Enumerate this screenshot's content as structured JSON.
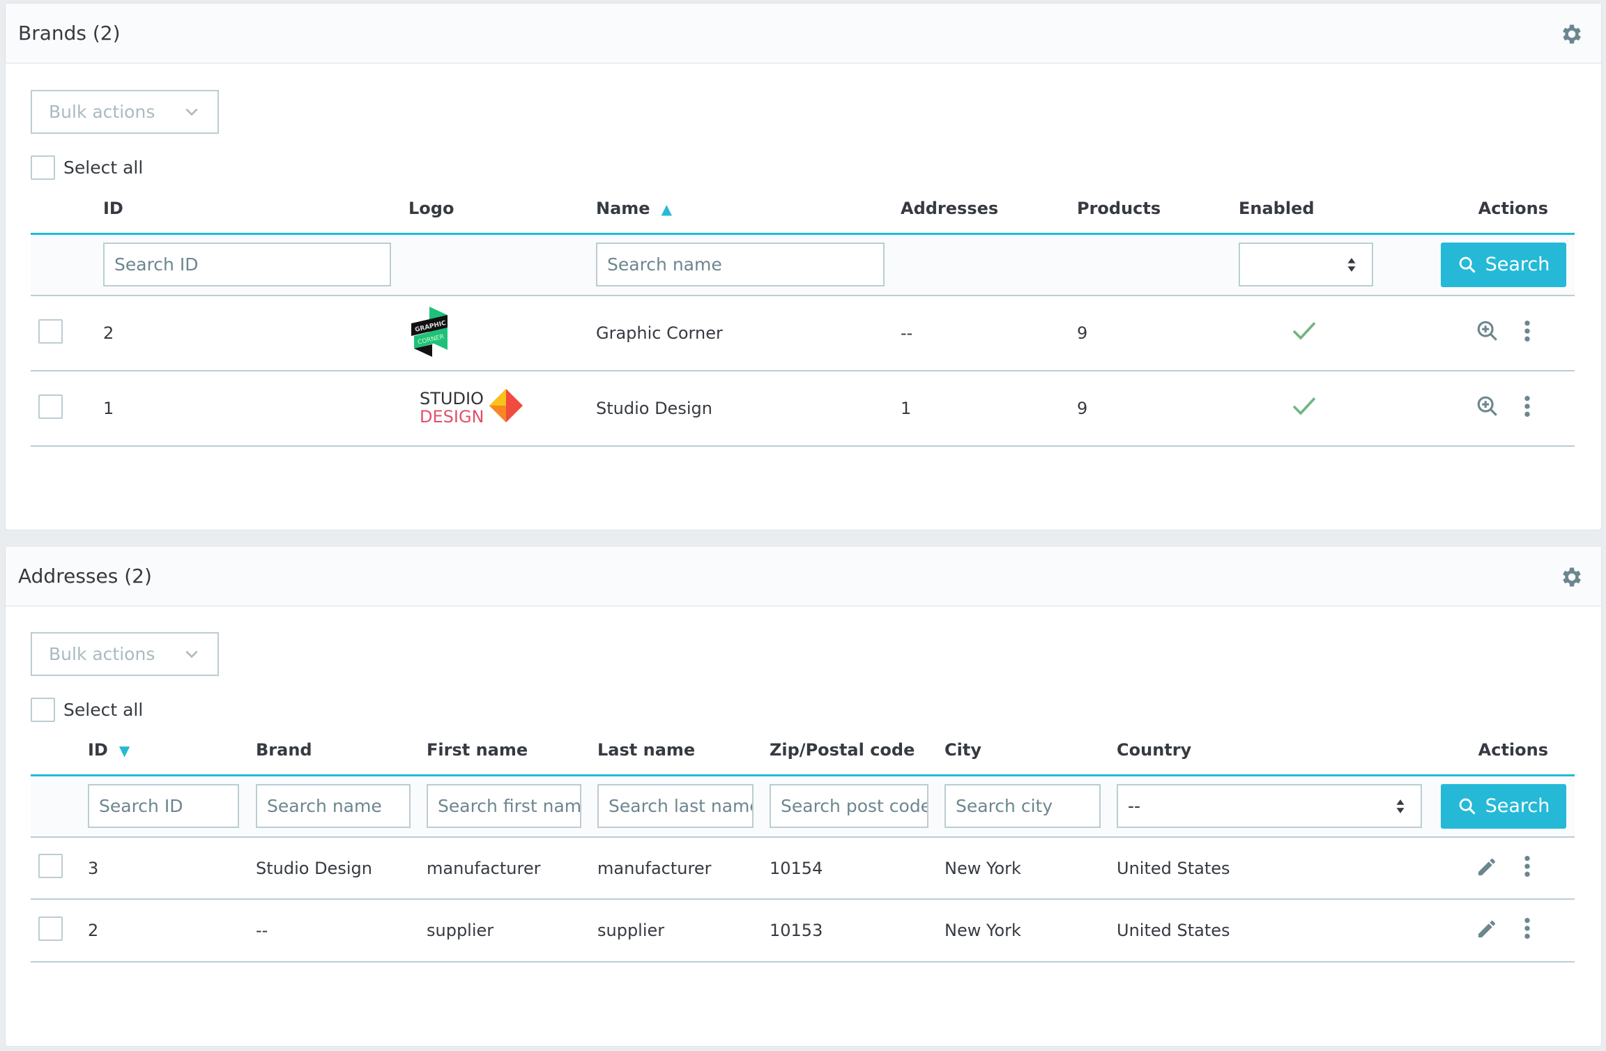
{
  "brands": {
    "title": "Brands (2)",
    "bulk_label": "Bulk actions",
    "select_all": "Select all",
    "columns": {
      "id": "ID",
      "logo": "Logo",
      "name": "Name",
      "addresses": "Addresses",
      "products": "Products",
      "enabled": "Enabled",
      "actions": "Actions"
    },
    "filters": {
      "id_placeholder": "Search ID",
      "name_placeholder": "Search name",
      "search_label": "Search"
    },
    "rows": [
      {
        "id": "2",
        "logo": "GRAPHIC CORNER",
        "name": "Graphic Corner",
        "addresses": "--",
        "products": "9",
        "enabled": true
      },
      {
        "id": "1",
        "logo": "STUDIO DESIGN",
        "name": "Studio Design",
        "addresses": "1",
        "products": "9",
        "enabled": true
      }
    ]
  },
  "addresses": {
    "title": "Addresses (2)",
    "bulk_label": "Bulk actions",
    "select_all": "Select all",
    "columns": {
      "id": "ID",
      "brand": "Brand",
      "first": "First name",
      "last": "Last name",
      "zip": "Zip/Postal code",
      "city": "City",
      "country": "Country",
      "actions": "Actions"
    },
    "filters": {
      "id": "Search ID",
      "brand": "Search name",
      "first": "Search first name",
      "last": "Search last name",
      "zip": "Search post code",
      "city": "Search city",
      "country": "--",
      "search_label": "Search"
    },
    "rows": [
      {
        "id": "3",
        "brand": "Studio Design",
        "first": "manufacturer",
        "last": "manufacturer",
        "zip": "10154",
        "city": "New York",
        "country": "United States"
      },
      {
        "id": "2",
        "brand": "--",
        "first": "supplier",
        "last": "supplier",
        "zip": "10153",
        "city": "New York",
        "country": "United States"
      }
    ]
  },
  "colors": {
    "accent": "#25b9d7",
    "check": "#70b580"
  }
}
